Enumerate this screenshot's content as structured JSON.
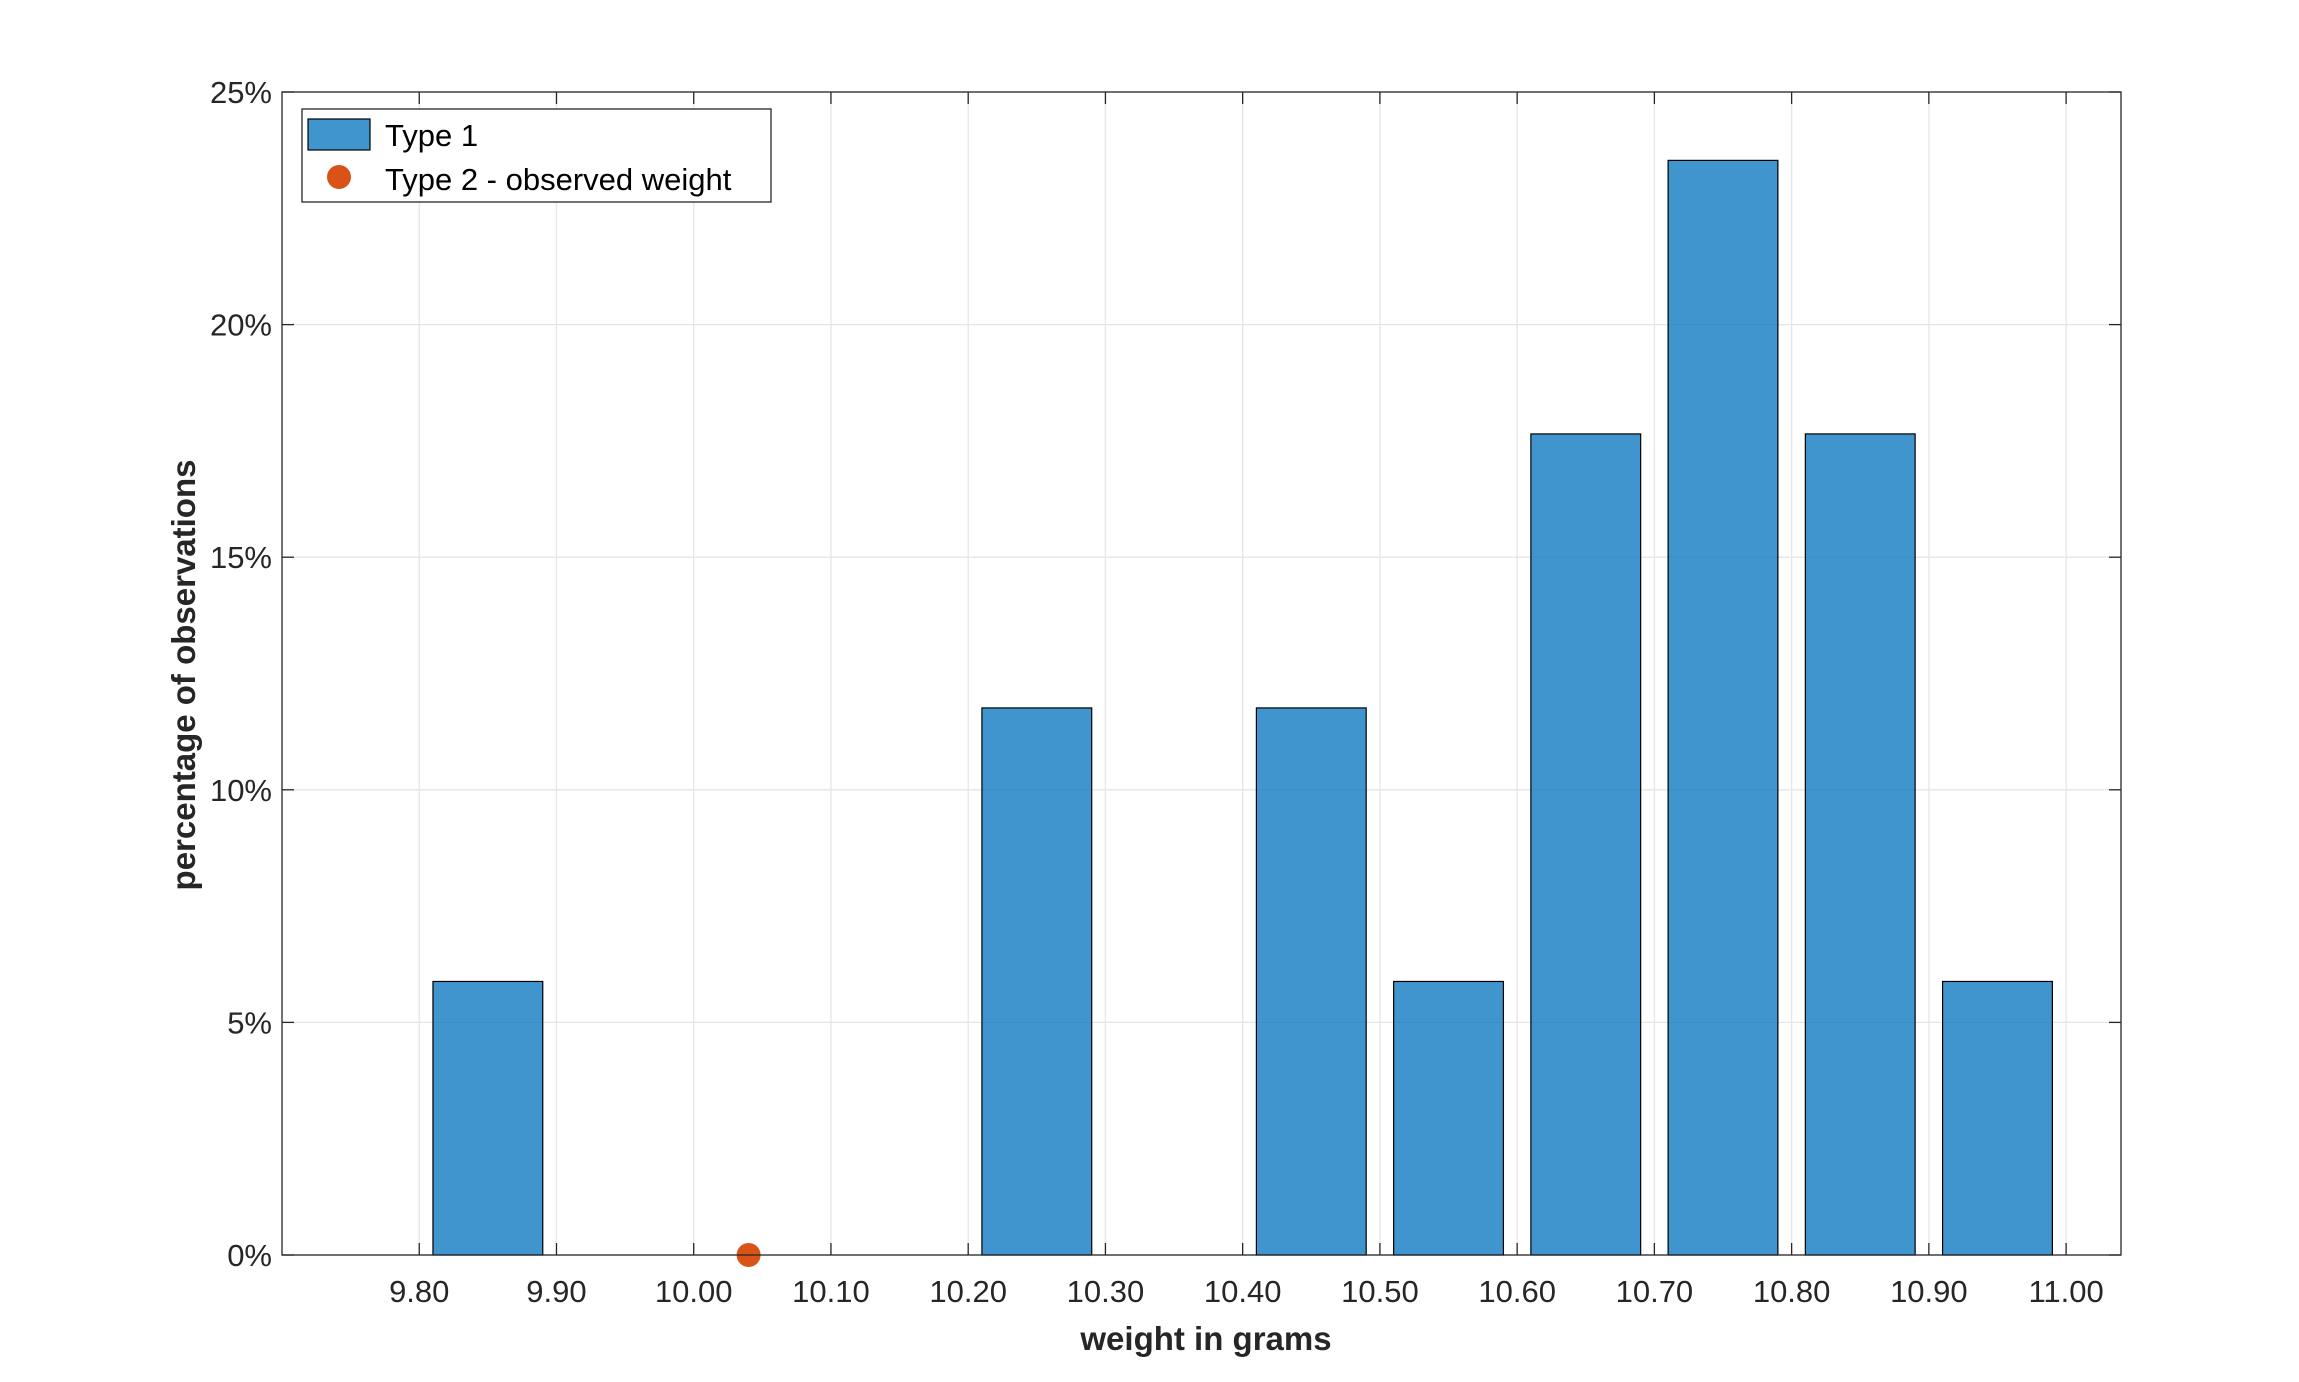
{
  "chart_data": {
    "type": "bar",
    "xlabel": "weight in grams",
    "ylabel": "percentage of observations",
    "xlim": [
      9.7,
      11.04
    ],
    "ylim": [
      0,
      25
    ],
    "x_ticks": [
      "9.80",
      "9.90",
      "10.00",
      "10.10",
      "10.20",
      "10.30",
      "10.40",
      "10.50",
      "10.60",
      "10.70",
      "10.80",
      "10.90",
      "11.00"
    ],
    "y_ticks": [
      "0%",
      "5%",
      "10%",
      "15%",
      "20%",
      "25%"
    ],
    "grid": true,
    "legend_position": "top-left",
    "legend": [
      "Type 1",
      "Type 2 - observed weight"
    ],
    "series": [
      {
        "name": "Type 1",
        "kind": "bar",
        "color": "#0072BD",
        "bins": [
          {
            "from": 9.8,
            "to": 9.9,
            "value": 5.88
          },
          {
            "from": 9.9,
            "to": 10.0,
            "value": 0
          },
          {
            "from": 10.0,
            "to": 10.1,
            "value": 0
          },
          {
            "from": 10.1,
            "to": 10.2,
            "value": 0
          },
          {
            "from": 10.2,
            "to": 10.3,
            "value": 11.76
          },
          {
            "from": 10.3,
            "to": 10.4,
            "value": 0
          },
          {
            "from": 10.4,
            "to": 10.5,
            "value": 11.76
          },
          {
            "from": 10.5,
            "to": 10.6,
            "value": 5.88
          },
          {
            "from": 10.6,
            "to": 10.7,
            "value": 17.65
          },
          {
            "from": 10.7,
            "to": 10.8,
            "value": 23.53
          },
          {
            "from": 10.8,
            "to": 10.9,
            "value": 17.65
          },
          {
            "from": 10.9,
            "to": 11.0,
            "value": 5.88
          }
        ]
      },
      {
        "name": "Type 2 - observed weight",
        "kind": "point",
        "color": "#D95319",
        "x": 10.04,
        "y": 0
      }
    ]
  }
}
